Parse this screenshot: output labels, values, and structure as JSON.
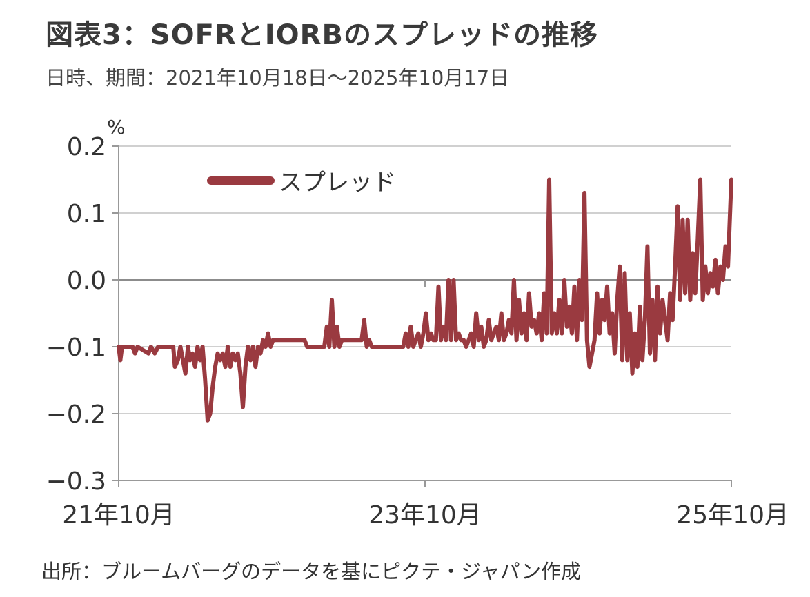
{
  "header": {
    "title": "図表3：SOFRとIORBのスプレッドの推移",
    "subtitle": "日時、期間：2021年10月18日～2025年10月17日"
  },
  "footer": {
    "source": "出所：ブルームバーグのデータを基にピクテ・ジャパン作成"
  },
  "chart_data": {
    "type": "line",
    "unit_label": "%",
    "ylim": [
      -0.3,
      0.2
    ],
    "yticks": [
      0.2,
      0.1,
      0.0,
      -0.1,
      -0.2,
      -0.3
    ],
    "ytick_labels": [
      "0.2",
      "0.1",
      "0.0",
      "−0.1",
      "−0.2",
      "−0.3"
    ],
    "x_start": "2021-10-18",
    "x_end": "2025-10-17",
    "xticks": [
      {
        "label": "21年10月",
        "date": "2021-10-18"
      },
      {
        "label": "23年10月",
        "date": "2023-10-18"
      },
      {
        "label": "25年10月",
        "date": "2025-10-17"
      }
    ],
    "grid": true,
    "legend_position": "top-left",
    "series_color": "#9a3a40",
    "grid_color": "#d0d0d0",
    "series": [
      {
        "name": "スプレッド",
        "points": [
          [
            "2021-10-18",
            -0.1
          ],
          [
            "2021-10-22",
            -0.12
          ],
          [
            "2021-10-26",
            -0.1
          ],
          [
            "2021-11-20",
            -0.1
          ],
          [
            "2021-11-26",
            -0.11
          ],
          [
            "2021-12-02",
            -0.1
          ],
          [
            "2021-12-28",
            -0.11
          ],
          [
            "2022-01-03",
            -0.1
          ],
          [
            "2022-01-12",
            -0.11
          ],
          [
            "2022-01-20",
            -0.1
          ],
          [
            "2022-02-25",
            -0.1
          ],
          [
            "2022-03-01",
            -0.13
          ],
          [
            "2022-03-08",
            -0.12
          ],
          [
            "2022-03-14",
            -0.1
          ],
          [
            "2022-03-20",
            -0.12
          ],
          [
            "2022-03-26",
            -0.14
          ],
          [
            "2022-04-01",
            -0.1
          ],
          [
            "2022-04-06",
            -0.12
          ],
          [
            "2022-04-12",
            -0.11
          ],
          [
            "2022-04-18",
            -0.13
          ],
          [
            "2022-04-24",
            -0.1
          ],
          [
            "2022-04-30",
            -0.12
          ],
          [
            "2022-05-06",
            -0.1
          ],
          [
            "2022-05-12",
            -0.15
          ],
          [
            "2022-05-18",
            -0.21
          ],
          [
            "2022-05-24",
            -0.2
          ],
          [
            "2022-05-30",
            -0.16
          ],
          [
            "2022-06-05",
            -0.13
          ],
          [
            "2022-06-11",
            -0.11
          ],
          [
            "2022-06-17",
            -0.12
          ],
          [
            "2022-06-23",
            -0.11
          ],
          [
            "2022-06-29",
            -0.13
          ],
          [
            "2022-07-05",
            -0.1
          ],
          [
            "2022-07-11",
            -0.13
          ],
          [
            "2022-07-17",
            -0.11
          ],
          [
            "2022-07-23",
            -0.12
          ],
          [
            "2022-07-29",
            -0.11
          ],
          [
            "2022-08-04",
            -0.14
          ],
          [
            "2022-08-10",
            -0.19
          ],
          [
            "2022-08-16",
            -0.13
          ],
          [
            "2022-08-22",
            -0.1
          ],
          [
            "2022-08-28",
            -0.12
          ],
          [
            "2022-09-03",
            -0.1
          ],
          [
            "2022-09-09",
            -0.13
          ],
          [
            "2022-09-15",
            -0.1
          ],
          [
            "2022-09-21",
            -0.11
          ],
          [
            "2022-09-27",
            -0.09
          ],
          [
            "2022-10-03",
            -0.1
          ],
          [
            "2022-10-09",
            -0.08
          ],
          [
            "2022-10-15",
            -0.1
          ],
          [
            "2022-10-21",
            -0.09
          ],
          [
            "2022-12-27",
            -0.09
          ],
          [
            "2023-01-04",
            -0.09
          ],
          [
            "2023-01-10",
            -0.1
          ],
          [
            "2023-02-20",
            -0.1
          ],
          [
            "2023-02-26",
            -0.07
          ],
          [
            "2023-03-04",
            -0.1
          ],
          [
            "2023-03-10",
            -0.03
          ],
          [
            "2023-03-16",
            -0.1
          ],
          [
            "2023-03-22",
            -0.07
          ],
          [
            "2023-03-28",
            -0.1
          ],
          [
            "2023-04-03",
            -0.09
          ],
          [
            "2023-05-20",
            -0.09
          ],
          [
            "2023-05-26",
            -0.06
          ],
          [
            "2023-06-01",
            -0.1
          ],
          [
            "2023-06-07",
            -0.09
          ],
          [
            "2023-06-13",
            -0.1
          ],
          [
            "2023-08-27",
            -0.1
          ],
          [
            "2023-09-02",
            -0.08
          ],
          [
            "2023-09-08",
            -0.1
          ],
          [
            "2023-09-14",
            -0.07
          ],
          [
            "2023-09-20",
            -0.1
          ],
          [
            "2023-09-26",
            -0.09
          ],
          [
            "2023-10-02",
            -0.08
          ],
          [
            "2023-10-08",
            -0.1
          ],
          [
            "2023-10-14",
            -0.08
          ],
          [
            "2023-10-20",
            -0.05
          ],
          [
            "2023-10-26",
            -0.09
          ],
          [
            "2023-11-01",
            -0.08
          ],
          [
            "2023-11-07",
            -0.09
          ],
          [
            "2023-11-13",
            -0.09
          ],
          [
            "2023-11-19",
            -0.01
          ],
          [
            "2023-11-25",
            -0.09
          ],
          [
            "2023-12-01",
            -0.07
          ],
          [
            "2023-12-07",
            -0.09
          ],
          [
            "2023-12-13",
            0.0
          ],
          [
            "2023-12-19",
            -0.09
          ],
          [
            "2023-12-25",
            0.0
          ],
          [
            "2023-12-31",
            -0.09
          ],
          [
            "2024-01-06",
            -0.08
          ],
          [
            "2024-01-12",
            -0.09
          ],
          [
            "2024-01-18",
            -0.09
          ],
          [
            "2024-01-24",
            -0.1
          ],
          [
            "2024-01-30",
            -0.09
          ],
          [
            "2024-02-05",
            -0.08
          ],
          [
            "2024-02-11",
            -0.1
          ],
          [
            "2024-02-17",
            -0.05
          ],
          [
            "2024-02-23",
            -0.09
          ],
          [
            "2024-02-29",
            -0.07
          ],
          [
            "2024-03-06",
            -0.1
          ],
          [
            "2024-03-12",
            -0.09
          ],
          [
            "2024-03-18",
            -0.06
          ],
          [
            "2024-03-24",
            -0.09
          ],
          [
            "2024-03-30",
            -0.08
          ],
          [
            "2024-04-05",
            -0.07
          ],
          [
            "2024-04-11",
            -0.09
          ],
          [
            "2024-04-17",
            -0.05
          ],
          [
            "2024-04-23",
            -0.09
          ],
          [
            "2024-04-29",
            -0.08
          ],
          [
            "2024-05-05",
            -0.06
          ],
          [
            "2024-05-11",
            -0.08
          ],
          [
            "2024-05-17",
            0.0
          ],
          [
            "2024-05-23",
            -0.09
          ],
          [
            "2024-05-29",
            -0.03
          ],
          [
            "2024-06-04",
            -0.08
          ],
          [
            "2024-06-10",
            -0.05
          ],
          [
            "2024-06-16",
            -0.09
          ],
          [
            "2024-06-22",
            -0.02
          ],
          [
            "2024-06-28",
            -0.07
          ],
          [
            "2024-07-04",
            -0.06
          ],
          [
            "2024-07-10",
            -0.08
          ],
          [
            "2024-07-16",
            -0.05
          ],
          [
            "2024-07-22",
            -0.09
          ],
          [
            "2024-07-28",
            -0.02
          ],
          [
            "2024-08-03",
            -0.08
          ],
          [
            "2024-08-09",
            0.15
          ],
          [
            "2024-08-15",
            -0.08
          ],
          [
            "2024-08-21",
            -0.05
          ],
          [
            "2024-08-27",
            -0.08
          ],
          [
            "2024-09-02",
            -0.03
          ],
          [
            "2024-09-08",
            -0.08
          ],
          [
            "2024-09-14",
            0.0
          ],
          [
            "2024-09-20",
            -0.07
          ],
          [
            "2024-09-26",
            -0.04
          ],
          [
            "2024-10-02",
            -0.08
          ],
          [
            "2024-10-08",
            -0.01
          ],
          [
            "2024-10-14",
            -0.09
          ],
          [
            "2024-10-20",
            0.0
          ],
          [
            "2024-10-26",
            -0.06
          ],
          [
            "2024-11-01",
            0.13
          ],
          [
            "2024-11-07",
            -0.09
          ],
          [
            "2024-11-13",
            -0.13
          ],
          [
            "2024-11-19",
            -0.11
          ],
          [
            "2024-11-25",
            -0.09
          ],
          [
            "2024-12-01",
            -0.02
          ],
          [
            "2024-12-07",
            -0.08
          ],
          [
            "2024-12-13",
            -0.03
          ],
          [
            "2024-12-19",
            -0.06
          ],
          [
            "2024-12-25",
            -0.01
          ],
          [
            "2024-12-31",
            -0.08
          ],
          [
            "2025-01-06",
            -0.05
          ],
          [
            "2025-01-12",
            -0.11
          ],
          [
            "2025-01-18",
            -0.03
          ],
          [
            "2025-01-24",
            0.02
          ],
          [
            "2025-01-30",
            -0.12
          ],
          [
            "2025-02-05",
            0.01
          ],
          [
            "2025-02-11",
            -0.12
          ],
          [
            "2025-02-17",
            -0.05
          ],
          [
            "2025-02-23",
            -0.14
          ],
          [
            "2025-03-01",
            -0.08
          ],
          [
            "2025-03-07",
            -0.13
          ],
          [
            "2025-03-13",
            -0.04
          ],
          [
            "2025-03-19",
            -0.12
          ],
          [
            "2025-03-25",
            -0.06
          ],
          [
            "2025-03-31",
            0.05
          ],
          [
            "2025-04-06",
            -0.11
          ],
          [
            "2025-04-12",
            -0.03
          ],
          [
            "2025-04-18",
            -0.12
          ],
          [
            "2025-04-24",
            -0.01
          ],
          [
            "2025-04-30",
            -0.08
          ],
          [
            "2025-05-06",
            -0.03
          ],
          [
            "2025-05-12",
            -0.06
          ],
          [
            "2025-05-18",
            -0.09
          ],
          [
            "2025-05-24",
            -0.02
          ],
          [
            "2025-05-30",
            -0.06
          ],
          [
            "2025-06-05",
            0.02
          ],
          [
            "2025-06-11",
            0.11
          ],
          [
            "2025-06-17",
            -0.03
          ],
          [
            "2025-06-23",
            0.09
          ],
          [
            "2025-06-29",
            -0.02
          ],
          [
            "2025-07-05",
            0.09
          ],
          [
            "2025-07-11",
            -0.03
          ],
          [
            "2025-07-17",
            0.04
          ],
          [
            "2025-07-23",
            -0.02
          ],
          [
            "2025-07-29",
            0.06
          ],
          [
            "2025-08-04",
            0.15
          ],
          [
            "2025-08-10",
            -0.03
          ],
          [
            "2025-08-16",
            0.02
          ],
          [
            "2025-08-22",
            -0.02
          ],
          [
            "2025-08-28",
            0.01
          ],
          [
            "2025-09-03",
            -0.01
          ],
          [
            "2025-09-09",
            0.03
          ],
          [
            "2025-09-15",
            -0.02
          ],
          [
            "2025-09-21",
            0.02
          ],
          [
            "2025-09-27",
            0.0
          ],
          [
            "2025-10-03",
            0.05
          ],
          [
            "2025-10-09",
            0.02
          ],
          [
            "2025-10-17",
            0.15
          ]
        ]
      }
    ]
  }
}
